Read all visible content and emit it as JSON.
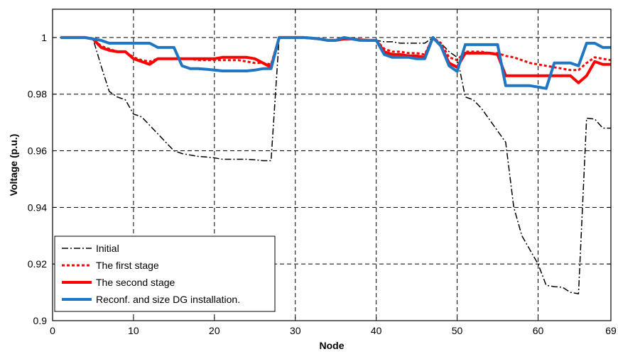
{
  "chart_data": {
    "type": "line",
    "title": "",
    "xlabel": "Node",
    "ylabel": "Voltage (p.u.)",
    "xlim": [
      0,
      69
    ],
    "ylim": [
      0.9,
      1.01
    ],
    "xticks": [
      0,
      10,
      20,
      30,
      40,
      50,
      60,
      69
    ],
    "yticks": [
      0.9,
      0.92,
      0.94,
      0.96,
      0.98,
      1
    ],
    "ytick_labels": [
      "0.9",
      "0.92",
      "0.94",
      "0.96",
      "0.98",
      "1"
    ],
    "grid": true,
    "legend_position": "bottom-left",
    "x": [
      1,
      2,
      3,
      4,
      5,
      6,
      7,
      8,
      9,
      10,
      11,
      12,
      13,
      14,
      15,
      16,
      17,
      18,
      19,
      20,
      21,
      22,
      23,
      24,
      25,
      26,
      27,
      28,
      29,
      30,
      31,
      32,
      33,
      34,
      35,
      36,
      37,
      38,
      39,
      40,
      41,
      42,
      43,
      44,
      45,
      46,
      47,
      48,
      49,
      50,
      51,
      52,
      53,
      54,
      55,
      56,
      57,
      58,
      59,
      60,
      61,
      62,
      63,
      64,
      65,
      66,
      67,
      68,
      69
    ],
    "series": [
      {
        "name": "Initial",
        "color": "#000000",
        "style": "dashdot",
        "width": 1.5,
        "values": [
          1.0,
          1.0,
          1.0,
          1.0,
          0.9995,
          0.99,
          0.981,
          0.979,
          0.978,
          0.973,
          0.972,
          0.969,
          0.966,
          0.963,
          0.96,
          0.959,
          0.9585,
          0.958,
          0.9578,
          0.9575,
          0.957,
          0.957,
          0.957,
          0.957,
          0.9568,
          0.9565,
          0.9565,
          1.0,
          1.0,
          1.0,
          1.0,
          0.9998,
          0.9995,
          0.999,
          0.999,
          0.9995,
          0.9995,
          0.9992,
          0.999,
          0.999,
          0.9985,
          0.9985,
          0.998,
          0.998,
          0.998,
          0.998,
          1.0,
          0.998,
          0.995,
          0.993,
          0.979,
          0.978,
          0.975,
          0.971,
          0.967,
          0.963,
          0.94,
          0.93,
          0.925,
          0.92,
          0.9125,
          0.912,
          0.9118,
          0.91,
          0.9095,
          0.9715,
          0.9712,
          0.968,
          0.968
        ]
      },
      {
        "name": "The first stage",
        "color": "#ff0000",
        "style": "dotted",
        "width": 3,
        "values": [
          1.0,
          1.0,
          1.0,
          1.0,
          0.9995,
          0.997,
          0.996,
          0.995,
          0.995,
          0.993,
          0.992,
          0.9915,
          0.9925,
          0.9925,
          0.9925,
          0.9925,
          0.9925,
          0.992,
          0.992,
          0.992,
          0.992,
          0.992,
          0.992,
          0.9915,
          0.991,
          0.991,
          0.9905,
          1.0,
          1.0,
          1.0,
          1.0,
          0.9998,
          0.9995,
          0.999,
          0.999,
          0.9995,
          0.9995,
          0.9992,
          0.999,
          0.999,
          0.996,
          0.995,
          0.995,
          0.9945,
          0.9945,
          0.994,
          1.0,
          0.998,
          0.993,
          0.992,
          0.995,
          0.995,
          0.995,
          0.9945,
          0.9945,
          0.9935,
          0.993,
          0.992,
          0.991,
          0.9905,
          0.99,
          0.9895,
          0.989,
          0.9885,
          0.9885,
          0.991,
          0.993,
          0.9925,
          0.992
        ]
      },
      {
        "name": "The second stage",
        "color": "#ff0000",
        "style": "solid",
        "width": 4,
        "values": [
          1.0,
          1.0,
          1.0,
          1.0,
          0.9995,
          0.9965,
          0.9955,
          0.995,
          0.995,
          0.9925,
          0.9915,
          0.9905,
          0.9925,
          0.9925,
          0.9925,
          0.9925,
          0.9925,
          0.9925,
          0.9925,
          0.9925,
          0.993,
          0.993,
          0.993,
          0.993,
          0.9925,
          0.991,
          0.9895,
          1.0,
          1.0,
          1.0,
          1.0,
          0.9998,
          0.9995,
          0.999,
          0.999,
          0.9995,
          0.9995,
          0.9992,
          0.999,
          0.999,
          0.995,
          0.994,
          0.994,
          0.9935,
          0.9935,
          0.993,
          1.0,
          0.997,
          0.991,
          0.9895,
          0.9945,
          0.9945,
          0.9945,
          0.9945,
          0.994,
          0.9865,
          0.9865,
          0.9865,
          0.9865,
          0.9865,
          0.9865,
          0.9865,
          0.9865,
          0.9865,
          0.984,
          0.9865,
          0.9915,
          0.9905,
          0.9905
        ]
      },
      {
        "name": "Reconf. and size DG installation.",
        "color": "#1f77c4",
        "style": "solid",
        "width": 4,
        "values": [
          1.0,
          1.0,
          1.0,
          1.0,
          0.9995,
          0.999,
          0.998,
          0.998,
          0.998,
          0.998,
          0.998,
          0.998,
          0.9965,
          0.9965,
          0.9965,
          0.99,
          0.989,
          0.989,
          0.9888,
          0.9885,
          0.9882,
          0.9882,
          0.9882,
          0.9882,
          0.9885,
          0.989,
          0.989,
          1.0,
          1.0,
          1.0,
          1.0,
          0.9998,
          0.9995,
          0.999,
          0.999,
          1.0,
          0.9995,
          0.999,
          0.999,
          0.999,
          0.994,
          0.993,
          0.993,
          0.993,
          0.9925,
          0.9925,
          1.0,
          0.997,
          0.99,
          0.988,
          0.9975,
          0.9975,
          0.9975,
          0.9975,
          0.9975,
          0.983,
          0.983,
          0.983,
          0.983,
          0.9825,
          0.982,
          0.991,
          0.991,
          0.991,
          0.99,
          0.998,
          0.998,
          0.9965,
          0.9965
        ]
      }
    ]
  }
}
